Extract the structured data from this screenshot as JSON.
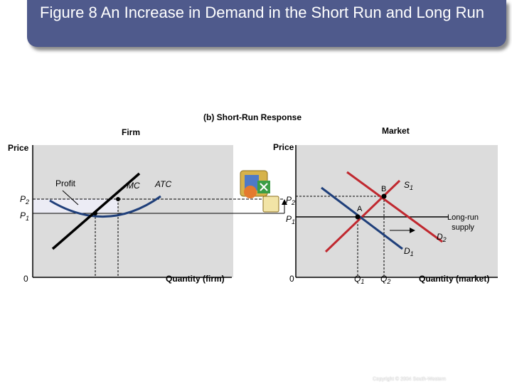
{
  "title": "Figure 8 An Increase in Demand in the Short Run and Long Run",
  "subtitle": "(b) Short-Run Response",
  "firm": {
    "heading": "Firm",
    "y_axis_label": "Price",
    "x_axis_label": "Quantity (firm)",
    "origin": "0",
    "curve_labels": {
      "profit": "Profit",
      "mc": "MC",
      "atc": "ATC"
    },
    "price_labels": {
      "p2": "P",
      "p2_sub": "2",
      "p1": "P",
      "p1_sub": "1"
    }
  },
  "market": {
    "heading": "Market",
    "y_axis_label": "Price",
    "x_axis_label": "Quantity (market)",
    "origin": "0",
    "point_labels": {
      "a": "A",
      "b": "B"
    },
    "curve_labels": {
      "s1": "S",
      "s1_sub": "1",
      "d1": "D",
      "d1_sub": "1",
      "d2": "D",
      "d2_sub": "2",
      "long_run_supply_line1": "Long-run",
      "long_run_supply_line2": "supply"
    },
    "price_labels": {
      "p2": "P",
      "p2_sub": "2",
      "p1": "P",
      "p1_sub": "1"
    },
    "quantity_labels": {
      "q1": "Q",
      "q1_sub": "1",
      "q2": "Q",
      "q2_sub": "2"
    }
  },
  "footer": {
    "copyright": "Copyright © 2004 South-Western"
  },
  "colors": {
    "title_bar": "#4f5a8c",
    "panel": "#dcdcdc",
    "demand": "#1f3f7a",
    "supply": "#c0282f",
    "profit_area": "#ececf5"
  },
  "icons": [
    "office-clipart-icon"
  ]
}
